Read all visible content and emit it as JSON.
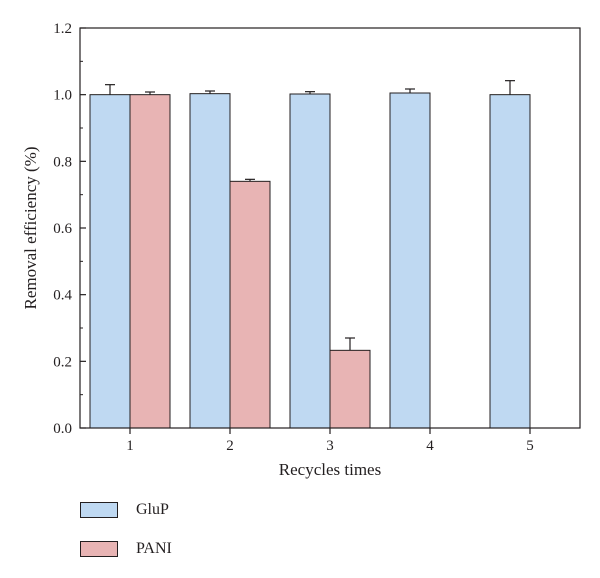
{
  "chart_data": {
    "type": "bar",
    "categories": [
      "1",
      "2",
      "3",
      "4",
      "5"
    ],
    "series": [
      {
        "name": "GluP",
        "values": [
          1.0,
          1.003,
          1.002,
          1.005,
          1.0
        ],
        "errors": [
          0.03,
          0.008,
          0.007,
          0.012,
          0.042
        ],
        "color": "#bfd9f2"
      },
      {
        "name": "PANI",
        "values": [
          1.0,
          0.74,
          0.233,
          null,
          null
        ],
        "errors": [
          0.008,
          0.006,
          0.037,
          null,
          null
        ],
        "color": "#e8b4b4"
      }
    ],
    "xlabel": "Recycles times",
    "ylabel": "Removal efficiency (%)",
    "ylim": [
      0,
      1.2
    ],
    "yticks": [
      "0.0",
      "0.2",
      "0.4",
      "0.6",
      "0.8",
      "1.0",
      "1.2"
    ],
    "grid": false,
    "legend_position": "bottom-left, below plot"
  }
}
